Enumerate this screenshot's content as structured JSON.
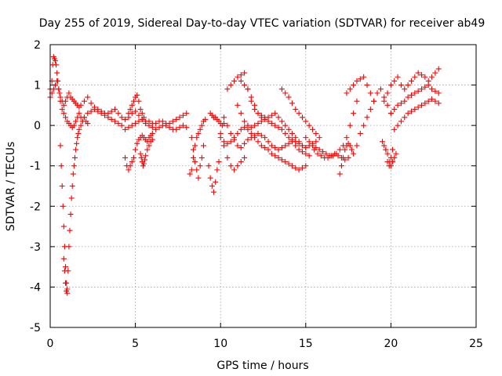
{
  "chart_data": {
    "type": "scatter",
    "title": "Day 255 of 2019, Sidereal Day-to-day VTEC variation (SDTVAR) for receiver ab49",
    "xlabel": "GPS time / hours",
    "ylabel": "SDTVAR / TECUs",
    "xlim": [
      0,
      25
    ],
    "ylim": [
      -5,
      2
    ],
    "xticks": [
      0,
      5,
      10,
      15,
      20,
      25
    ],
    "yticks": [
      -5,
      -4,
      -3,
      -2,
      -1,
      0,
      1,
      2
    ],
    "xtick_labels": [
      "0",
      "5",
      "10",
      "15",
      "20",
      "25"
    ],
    "ytick_labels": [
      "-5",
      "-4",
      "-3",
      "-2",
      "-1",
      "0",
      "1",
      "2"
    ],
    "grid": true,
    "marker": "+",
    "color": "#ff0000",
    "series": [
      {
        "name": "SDTVAR",
        "x": [
          0.0,
          0.1,
          0.15,
          0.2,
          0.25,
          0.3,
          0.35,
          0.4,
          0.45,
          0.5,
          0.55,
          0.6,
          0.7,
          0.8,
          0.9,
          1.0,
          1.1,
          1.2,
          1.3,
          1.4,
          1.5,
          1.6,
          1.7,
          1.8,
          2.0,
          2.2,
          2.4,
          2.6,
          2.8,
          3.0,
          3.2,
          3.4,
          3.6,
          3.8,
          4.0,
          4.2,
          4.4,
          4.6,
          4.8,
          5.0,
          5.2,
          5.4,
          5.6,
          5.8,
          6.0,
          6.2,
          6.4,
          6.6,
          6.8,
          7.0,
          7.2,
          7.4,
          7.6,
          7.8,
          8.0,
          0.0,
          0.1,
          0.2,
          0.3,
          0.4,
          0.5,
          0.6,
          0.7,
          0.8,
          0.9,
          1.0,
          1.1,
          1.2,
          1.3,
          1.4,
          1.5,
          1.6,
          1.7,
          1.8,
          1.9,
          2.0,
          2.2,
          2.4,
          2.6,
          2.8,
          3.0,
          3.2,
          3.4,
          3.6,
          3.8,
          4.0,
          4.2,
          4.4,
          4.6,
          4.8,
          5.0,
          5.2,
          5.4,
          5.6,
          5.8,
          6.0,
          0.6,
          0.65,
          0.7,
          0.75,
          0.8,
          0.85,
          0.9,
          0.95,
          1.0,
          1.05,
          1.1,
          1.15,
          1.2,
          1.25,
          1.3,
          1.35,
          1.4,
          1.45,
          1.5,
          1.55,
          1.6,
          1.65,
          1.7,
          1.8,
          1.9,
          2.0,
          2.1,
          2.2,
          0.8,
          0.85,
          0.9,
          0.95,
          1.0,
          4.4,
          4.5,
          4.6,
          4.7,
          4.8,
          4.9,
          5.0,
          5.1,
          5.2,
          5.3,
          5.4,
          5.5,
          5.6,
          5.7,
          5.8,
          5.9,
          6.0,
          6.2,
          6.4,
          6.6,
          6.8,
          7.0,
          7.2,
          7.4,
          7.6,
          7.8,
          8.0,
          5.3,
          5.35,
          5.4,
          5.45,
          5.5,
          5.55,
          5.6,
          5.7,
          5.8,
          5.9,
          6.0,
          4.6,
          4.7,
          4.8,
          4.9,
          5.0,
          5.1,
          5.2,
          5.3,
          5.4,
          5.5,
          5.6,
          8.2,
          8.3,
          8.4,
          8.5,
          8.6,
          8.7,
          8.8,
          8.9,
          9.0,
          9.1,
          8.3,
          8.4,
          8.5,
          8.6,
          8.7,
          8.8,
          8.9,
          9.0,
          9.4,
          9.5,
          9.6,
          9.7,
          9.8,
          9.9,
          10.0,
          10.1,
          10.2,
          9.3,
          9.4,
          9.5,
          9.6,
          9.7,
          9.8,
          9.9,
          10.0,
          10.2,
          10.4,
          10.6,
          10.8,
          11.0,
          11.2,
          11.4,
          11.6,
          11.8,
          12.0,
          12.2,
          12.4,
          12.6,
          12.8,
          13.0,
          13.2,
          13.4,
          13.6,
          13.8,
          14.0,
          14.2,
          14.4,
          14.6,
          14.8,
          15.0,
          10.2,
          10.4,
          10.6,
          10.8,
          11.0,
          11.2,
          11.4,
          11.6,
          11.8,
          12.0,
          12.2,
          12.4,
          12.6,
          12.8,
          13.0,
          13.2,
          13.4,
          13.6,
          13.8,
          14.0,
          14.2,
          14.4,
          14.6,
          14.8,
          15.0,
          15.2,
          10.4,
          10.6,
          10.8,
          11.0,
          11.2,
          11.4,
          11.6,
          11.8,
          12.0,
          12.2,
          12.4,
          12.6,
          12.8,
          13.0,
          13.2,
          13.4,
          13.6,
          13.8,
          14.0,
          14.2,
          14.4,
          14.6,
          14.8,
          15.0,
          11.0,
          11.2,
          11.4,
          11.6,
          11.8,
          12.0,
          12.2,
          12.4,
          12.6,
          12.8,
          13.0,
          13.2,
          13.4,
          13.6,
          13.8,
          14.0,
          14.2,
          14.4,
          14.6,
          14.8,
          15.0,
          15.2,
          15.4,
          15.6,
          10.0,
          10.2,
          10.4,
          10.6,
          10.8,
          11.0,
          11.2,
          11.4,
          11.2,
          11.4,
          11.6,
          11.8,
          12.0,
          12.2,
          12.4,
          13.6,
          13.8,
          14.0,
          14.2,
          14.4,
          14.6,
          14.8,
          15.0,
          15.2,
          15.4,
          15.6,
          15.8,
          15.0,
          15.2,
          15.4,
          15.6,
          15.8,
          16.0,
          16.2,
          16.4,
          16.6,
          16.8,
          17.0,
          17.2,
          17.4,
          17.6,
          17.8,
          18.0,
          15.5,
          15.7,
          15.9,
          16.1,
          16.3,
          16.5,
          16.7,
          16.9,
          17.1,
          17.3,
          17.5,
          17.4,
          17.6,
          17.8,
          18.0,
          18.2,
          18.4,
          18.6,
          18.8,
          19.0,
          18.0,
          18.2,
          18.4,
          18.6,
          18.8,
          19.0,
          19.2,
          19.4,
          19.6,
          19.8,
          20.0,
          19.5,
          19.6,
          19.7,
          19.8,
          19.9,
          20.0,
          20.1,
          20.2,
          20.3,
          19.6,
          19.8,
          20.0,
          20.2,
          20.4,
          20.6,
          20.8,
          21.0,
          21.2,
          21.4,
          21.6,
          21.8,
          22.0,
          22.2,
          22.4,
          22.6,
          22.8,
          20.0,
          20.2,
          20.4,
          20.6,
          20.8,
          21.0,
          21.2,
          21.4,
          21.6,
          21.8,
          22.0,
          22.2,
          22.4,
          22.6,
          22.8,
          20.2,
          20.4,
          20.6,
          20.8,
          21.0,
          21.2,
          21.4,
          21.6,
          21.8,
          22.0,
          22.2,
          22.4,
          22.6,
          22.8,
          19.7,
          19.8,
          19.9,
          20.0,
          20.1,
          17.0,
          17.1,
          17.2,
          17.3,
          17.4,
          17.5,
          17.6,
          17.7,
          17.8
        ],
        "y": [
          0.9,
          1.1,
          1.5,
          1.7,
          1.65,
          1.6,
          1.5,
          1.3,
          1.1,
          0.9,
          0.8,
          0.7,
          0.6,
          0.5,
          0.6,
          0.7,
          0.8,
          0.7,
          0.65,
          0.6,
          0.55,
          0.5,
          0.45,
          0.5,
          0.6,
          0.7,
          0.55,
          0.45,
          0.4,
          0.35,
          0.3,
          0.3,
          0.35,
          0.4,
          0.3,
          0.2,
          0.15,
          0.2,
          0.3,
          0.35,
          0.25,
          0.15,
          0.1,
          0.1,
          0.05,
          0.05,
          0.1,
          0.1,
          0.05,
          0.05,
          0.1,
          0.15,
          0.2,
          0.25,
          0.3,
          0.7,
          0.8,
          0.9,
          1.0,
          1.1,
          0.9,
          0.6,
          0.4,
          0.3,
          0.2,
          0.1,
          0.05,
          0.0,
          -0.05,
          0.0,
          0.1,
          0.2,
          0.3,
          0.2,
          0.1,
          0.2,
          0.3,
          0.35,
          0.4,
          0.35,
          0.3,
          0.25,
          0.2,
          0.15,
          0.1,
          0.05,
          0.0,
          -0.1,
          -0.05,
          0.0,
          0.05,
          0.1,
          0.15,
          0.05,
          0.0,
          -0.05,
          -0.5,
          -1.0,
          -1.5,
          -2.0,
          -2.5,
          -3.0,
          -3.5,
          -3.9,
          -4.05,
          -3.6,
          -3.0,
          -2.6,
          -2.2,
          -1.8,
          -1.5,
          -1.2,
          -1.0,
          -0.8,
          -0.6,
          -0.45,
          -0.3,
          -0.2,
          -0.1,
          0.0,
          0.1,
          0.2,
          0.1,
          0.05,
          -3.3,
          -3.6,
          -3.9,
          -4.1,
          -4.15,
          -0.8,
          -1.0,
          -1.1,
          -1.0,
          -0.9,
          -0.8,
          -0.6,
          -0.45,
          -0.35,
          -0.3,
          -0.25,
          -0.3,
          -0.35,
          -0.4,
          -0.3,
          -0.25,
          -0.2,
          -0.1,
          -0.05,
          0.0,
          0.0,
          -0.05,
          -0.1,
          -0.1,
          -0.05,
          0.0,
          -0.05,
          -0.7,
          -0.8,
          -0.9,
          -1.0,
          -0.95,
          -0.85,
          -0.75,
          -0.6,
          -0.5,
          -0.4,
          -0.35,
          0.3,
          0.4,
          0.5,
          0.6,
          0.7,
          0.75,
          0.6,
          0.4,
          0.3,
          0.2,
          0.1,
          -1.2,
          -1.1,
          -0.8,
          -0.5,
          -0.3,
          -0.2,
          -0.1,
          0.0,
          0.1,
          0.15,
          -0.3,
          -0.6,
          -0.9,
          -1.1,
          -1.3,
          -1.0,
          -0.8,
          -0.5,
          0.3,
          0.25,
          0.2,
          0.2,
          0.15,
          0.1,
          0.05,
          0.0,
          0.05,
          -1.0,
          -1.3,
          -1.5,
          -1.65,
          -1.4,
          -1.1,
          -0.9,
          -0.3,
          -0.4,
          -0.45,
          -0.4,
          -0.3,
          -0.2,
          -0.1,
          -0.05,
          -0.1,
          -0.2,
          -0.3,
          -0.4,
          -0.5,
          -0.55,
          -0.6,
          -0.7,
          -0.75,
          -0.8,
          -0.85,
          -0.9,
          -0.95,
          -1.0,
          -1.05,
          -1.1,
          -1.05,
          -1.0,
          0.2,
          0.0,
          -0.2,
          -0.35,
          -0.5,
          -0.55,
          -0.45,
          -0.35,
          -0.3,
          -0.25,
          -0.2,
          -0.25,
          -0.3,
          -0.4,
          -0.5,
          -0.55,
          -0.6,
          -0.55,
          -0.5,
          -0.45,
          -0.4,
          -0.5,
          -0.6,
          -0.65,
          -0.7,
          -0.75,
          0.9,
          1.0,
          1.1,
          1.2,
          1.25,
          1.3,
          0.9,
          0.6,
          0.4,
          0.3,
          0.25,
          0.2,
          0.1,
          0.05,
          0.0,
          -0.05,
          -0.1,
          -0.2,
          -0.3,
          -0.35,
          -0.4,
          -0.45,
          -0.5,
          -0.55,
          0.5,
          0.3,
          0.1,
          0.0,
          -0.05,
          0.0,
          0.05,
          0.1,
          0.15,
          0.2,
          0.25,
          0.3,
          0.2,
          0.1,
          0.0,
          -0.1,
          -0.2,
          -0.3,
          -0.4,
          -0.5,
          -0.55,
          -0.5,
          -0.45,
          -0.4,
          -0.2,
          -0.5,
          -0.8,
          -1.0,
          -1.1,
          -1.0,
          -0.9,
          -0.8,
          1.1,
          1.0,
          0.9,
          0.7,
          0.5,
          0.3,
          0.2,
          0.9,
          0.8,
          0.7,
          0.55,
          0.4,
          0.3,
          0.2,
          0.1,
          0.0,
          -0.1,
          -0.2,
          -0.3,
          -0.3,
          -0.4,
          -0.5,
          -0.55,
          -0.6,
          -0.65,
          -0.7,
          -0.75,
          -0.75,
          -0.7,
          -0.6,
          -0.5,
          -0.3,
          0.0,
          0.3,
          0.6,
          -0.6,
          -0.7,
          -0.75,
          -0.8,
          -0.8,
          -0.75,
          -0.7,
          -0.75,
          -0.8,
          -0.85,
          -0.8,
          0.8,
          0.9,
          1.0,
          1.1,
          1.15,
          1.2,
          1.0,
          0.8,
          0.6,
          -0.5,
          -0.2,
          0.0,
          0.2,
          0.4,
          0.6,
          0.8,
          0.9,
          0.7,
          0.5,
          0.3,
          -0.4,
          -0.5,
          -0.6,
          -0.7,
          -0.9,
          -1.0,
          -0.9,
          -0.8,
          -0.7,
          0.6,
          0.8,
          1.0,
          1.1,
          1.2,
          1.0,
          0.9,
          1.0,
          1.1,
          1.2,
          1.3,
          1.25,
          1.2,
          1.1,
          1.2,
          1.3,
          1.4,
          0.3,
          0.4,
          0.5,
          0.55,
          0.6,
          0.7,
          0.75,
          0.8,
          0.85,
          0.9,
          0.95,
          1.0,
          0.9,
          0.85,
          0.8,
          -0.1,
          0.0,
          0.1,
          0.2,
          0.3,
          0.35,
          0.4,
          0.45,
          0.5,
          0.55,
          0.6,
          0.65,
          0.6,
          0.55,
          -0.6,
          -0.9,
          -1.0,
          -0.8,
          -0.6,
          -1.2,
          -1.0,
          -0.8,
          -0.6,
          -0.5,
          -0.45,
          -0.5,
          -0.6,
          -0.7
        ]
      }
    ]
  }
}
